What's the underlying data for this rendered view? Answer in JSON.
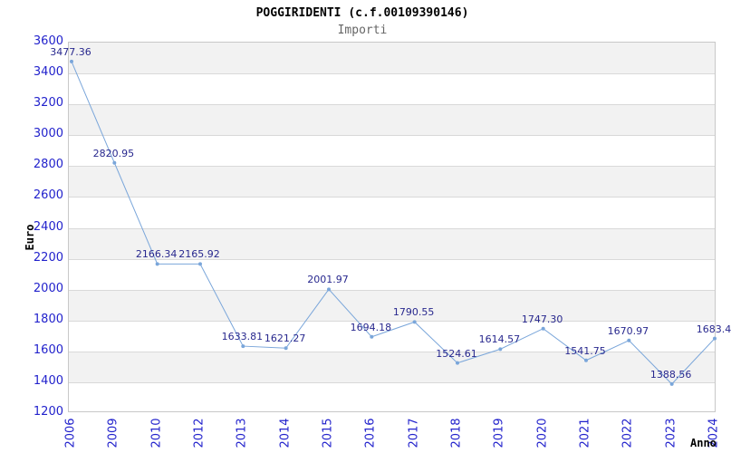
{
  "header": {
    "title": "POGGIRIDENTI (c.f.00109390146)",
    "subtitle": "Importi"
  },
  "chart_data": {
    "type": "line",
    "title": "POGGIRIDENTI (c.f.00109390146)",
    "subtitle": "Importi",
    "xlabel": "Anno",
    "ylabel": "Euro",
    "x": [
      "2006",
      "2009",
      "2010",
      "2012",
      "2013",
      "2014",
      "2015",
      "2016",
      "2017",
      "2018",
      "2019",
      "2020",
      "2021",
      "2022",
      "2023",
      "2024"
    ],
    "values": [
      3477.36,
      2820.95,
      2166.34,
      2165.92,
      1633.81,
      1621.27,
      2001.97,
      1694.18,
      1790.55,
      1524.61,
      1614.57,
      1747.3,
      1541.75,
      1670.97,
      1388.56,
      1683.4
    ],
    "point_labels": [
      "3477.36",
      "2820.95",
      "2166.34",
      "2165.92",
      "1633.81",
      "1621.27",
      "2001.97",
      "1694.18",
      "1790.55",
      "1524.61",
      "1614.57",
      "1747.30",
      "1541.75",
      "1670.97",
      "1388.56",
      "1683.4"
    ],
    "ylim": [
      1200,
      3600
    ],
    "yticks": [
      3600,
      3400,
      3200,
      3000,
      2800,
      2600,
      2400,
      2200,
      2000,
      1800,
      1600,
      1400,
      1200
    ],
    "grid": "horizontal",
    "banding": "alternating-starting-shaded-at-top",
    "legend": "none"
  },
  "colors": {
    "title": "#000000",
    "subtitle": "#666666",
    "line": "#7aa6da",
    "marker": "#7aa6da",
    "tick_label": "#2222cc",
    "point_label": "#28288e",
    "band": "#f2f2f2",
    "grid": "#d9d9d9",
    "frame": "#c8c8c8",
    "axis_title": "#000000"
  }
}
